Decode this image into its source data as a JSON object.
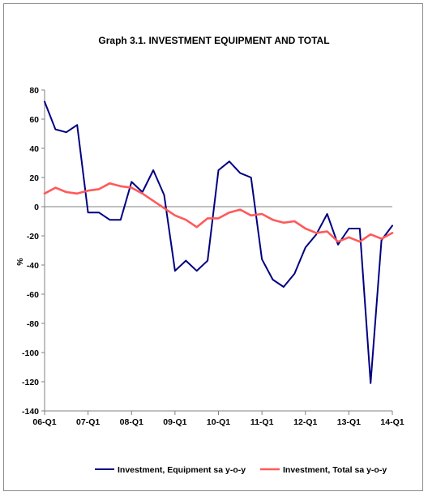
{
  "chart_data": {
    "type": "line",
    "title": "Graph 3.1. INVESTMENT EQUIPMENT AND TOTAL",
    "xlabel": "",
    "ylabel": "%",
    "ylim": [
      -140,
      80
    ],
    "yticks": [
      80,
      60,
      40,
      20,
      0,
      -20,
      -40,
      -60,
      -80,
      -100,
      -120,
      -140
    ],
    "xtick_labels": [
      "06-Q1",
      "07-Q1",
      "08-Q1",
      "09-Q1",
      "10-Q1",
      "11-Q1",
      "12-Q1",
      "13-Q1",
      "14-Q1"
    ],
    "legend_position": "bottom",
    "grid": false,
    "series": [
      {
        "name": "Investment, Equipment sa y-o-y",
        "color": "#000080",
        "values": [
          72,
          53,
          51,
          56,
          -4,
          -4,
          -9,
          -9,
          17,
          10,
          25,
          8,
          -44,
          -37,
          -44,
          -37,
          25,
          31,
          23,
          20,
          -36,
          -50,
          -55,
          -46,
          -28,
          -19,
          -5,
          -26,
          -15,
          -15,
          -121,
          -23,
          -13
        ]
      },
      {
        "name": "Investment, Total sa y-o-y",
        "color": "#ff5a5a",
        "values": [
          9,
          13,
          10,
          9,
          11,
          12,
          16,
          14,
          13,
          9,
          4,
          -1,
          -6,
          -9,
          -14,
          -8,
          -8,
          -4,
          -2,
          -6,
          -5,
          -9,
          -11,
          -10,
          -15,
          -18,
          -17,
          -24,
          -21,
          -24,
          -19,
          -22,
          -18
        ]
      }
    ]
  }
}
